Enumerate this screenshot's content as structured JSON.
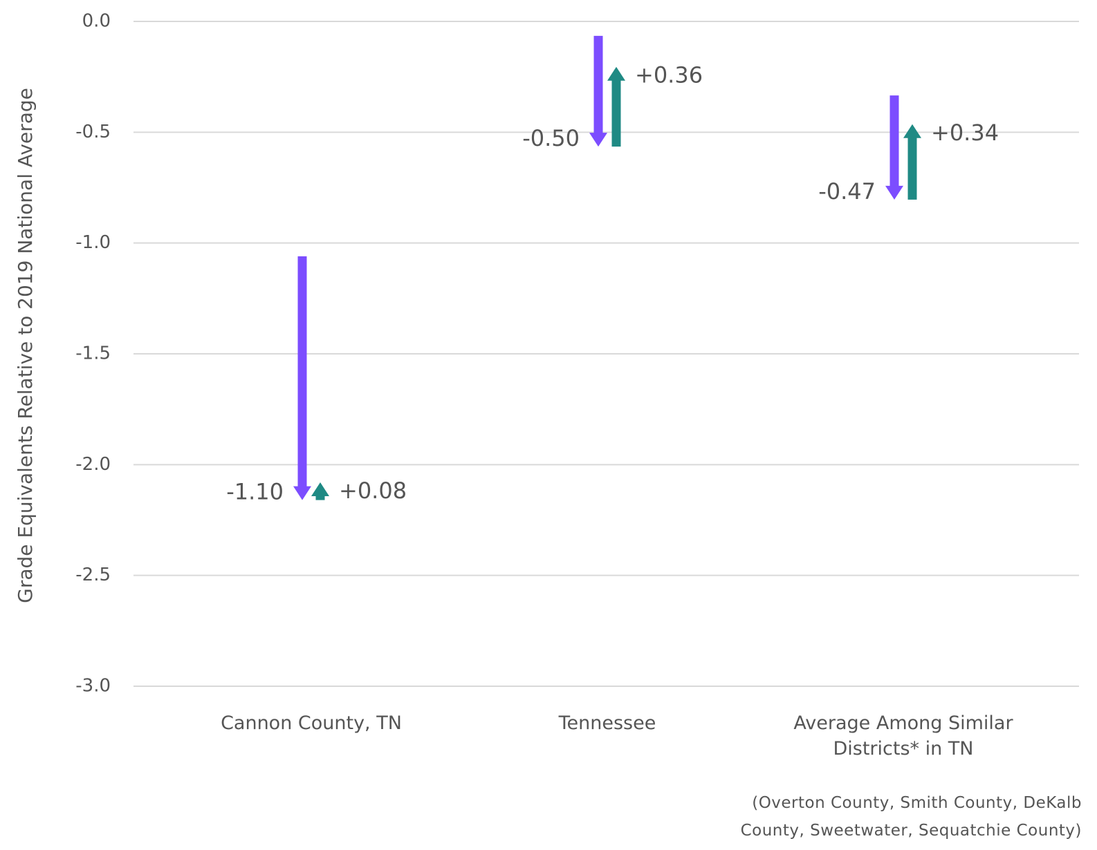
{
  "chart_data": {
    "type": "arrow-change",
    "y_label": "Grade Equivalents Relative to 2019 National Average",
    "categories": [
      "Cannon County, TN",
      "Tennessee",
      "Average Among Similar Districts* in TN"
    ],
    "start": [
      -1.06,
      -0.065,
      -0.334
    ],
    "series": [
      {
        "color": "#7c4dff",
        "values": [
          -1.1,
          -0.5,
          -0.47
        ],
        "value_labels": [
          "-1.10",
          "-0.50",
          "-0.47"
        ]
      },
      {
        "color": "#1f8a84",
        "values": [
          0.08,
          0.36,
          0.34
        ],
        "value_labels": [
          "+0.08",
          "+0.36",
          "+0.34"
        ]
      }
    ],
    "ylim": [
      -3.0,
      0.0
    ],
    "yticks": [
      {
        "value": 0,
        "label": "0.0"
      },
      {
        "value": -0.5,
        "label": "-0.5"
      },
      {
        "value": -1,
        "label": "-1.0"
      },
      {
        "value": -1.5,
        "label": "-1.5"
      },
      {
        "value": -2,
        "label": "-2.0"
      },
      {
        "value": -2.5,
        "label": "-2.5"
      },
      {
        "value": -3,
        "label": "-3.0"
      }
    ],
    "grid": true,
    "footnote": "(Overton County, Smith County, DeKalb County, Sweetwater, Sequatchie County)"
  }
}
